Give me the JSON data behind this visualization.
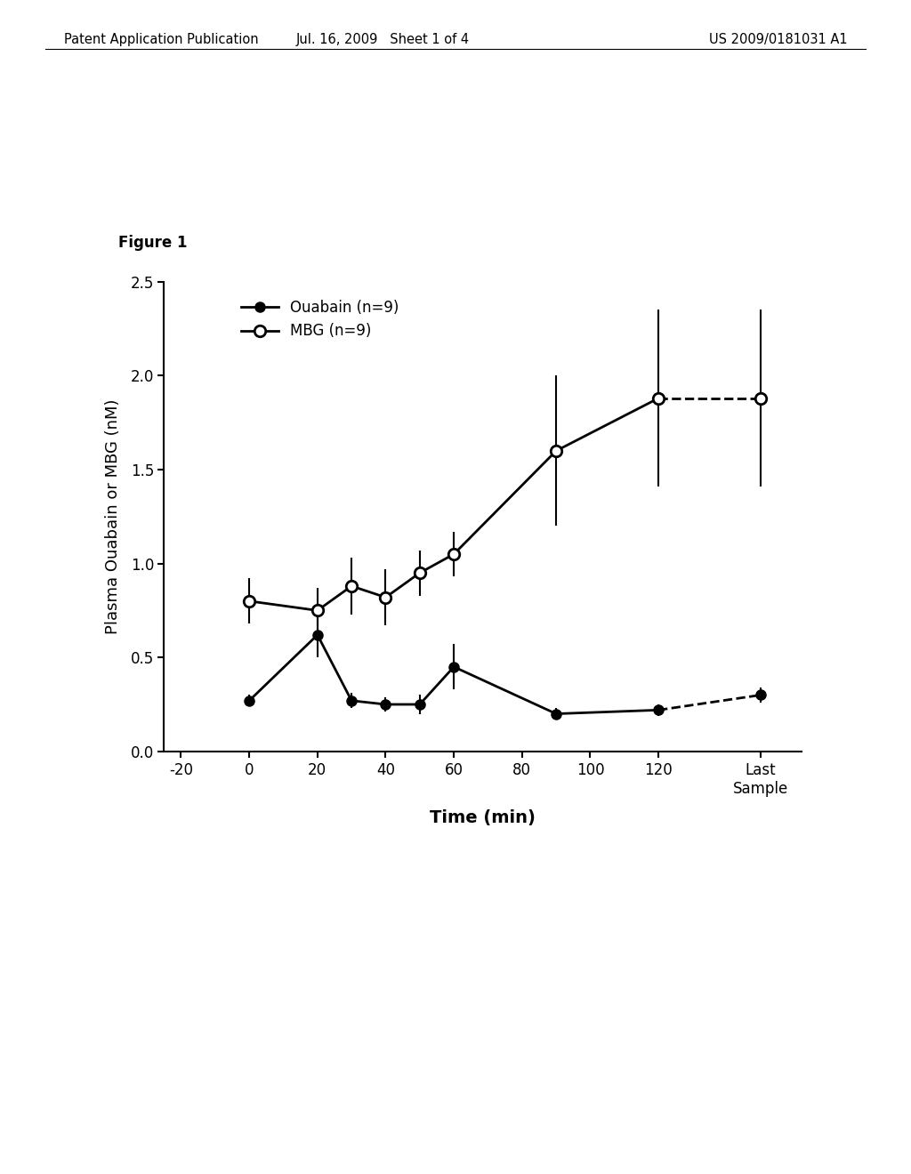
{
  "figure_label": "Figure 1",
  "ylabel": "Plasma Ouabain or MBG (nM)",
  "xlabel": "Time (min)",
  "xlim": [
    -25,
    162
  ],
  "ylim": [
    0.0,
    2.5
  ],
  "yticks": [
    0.0,
    0.5,
    1.0,
    1.5,
    2.0,
    2.5
  ],
  "xtick_positions": [
    -20,
    0,
    20,
    40,
    60,
    80,
    100,
    120
  ],
  "xtick_labels": [
    "-20",
    "0",
    "20",
    "40",
    "60",
    "80",
    "100",
    "120"
  ],
  "last_sample_x": 150,
  "ouabain_x": [
    0,
    20,
    30,
    40,
    50,
    60,
    90,
    120
  ],
  "ouabain_y": [
    0.27,
    0.62,
    0.27,
    0.25,
    0.25,
    0.45,
    0.2,
    0.22
  ],
  "ouabain_yerr": [
    0.03,
    0.12,
    0.04,
    0.04,
    0.05,
    0.12,
    0.03,
    0.03
  ],
  "ouabain_last_y": 0.3,
  "ouabain_last_yerr": 0.04,
  "mbg_x": [
    0,
    20,
    30,
    40,
    50,
    60,
    90,
    120
  ],
  "mbg_y": [
    0.8,
    0.75,
    0.88,
    0.82,
    0.95,
    1.05,
    1.6,
    1.88
  ],
  "mbg_yerr": [
    0.12,
    0.12,
    0.15,
    0.15,
    0.12,
    0.12,
    0.4,
    0.47
  ],
  "mbg_last_y": 1.88,
  "mbg_last_yerr": 0.47,
  "legend_ouabain": "Ouabain (n=9)",
  "legend_mbg": "MBG (n=9)",
  "header_left": "Patent Application Publication",
  "header_center": "Jul. 16, 2009   Sheet 1 of 4",
  "header_right": "US 2009/0181031 A1",
  "background_color": "#ffffff"
}
